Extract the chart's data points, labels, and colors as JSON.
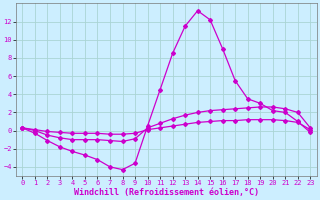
{
  "xlabel": "Windchill (Refroidissement éolien,°C)",
  "background_color": "#cceeff",
  "grid_color": "#aad4d4",
  "line_color": "#cc00cc",
  "xlim": [
    -0.5,
    23.5
  ],
  "ylim": [
    -5,
    14
  ],
  "xticks": [
    0,
    1,
    2,
    3,
    4,
    5,
    6,
    7,
    8,
    9,
    10,
    11,
    12,
    13,
    14,
    15,
    16,
    17,
    18,
    19,
    20,
    21,
    22,
    23
  ],
  "yticks": [
    -4,
    -2,
    0,
    2,
    4,
    6,
    8,
    10,
    12
  ],
  "line1_x": [
    0,
    1,
    2,
    3,
    4,
    5,
    6,
    7,
    8,
    9,
    10,
    11,
    12,
    13,
    14,
    15,
    16,
    17,
    18,
    19,
    20,
    21,
    22,
    23
  ],
  "line1_y": [
    0.3,
    -0.3,
    -1.1,
    -1.8,
    -2.3,
    -2.7,
    -3.2,
    -4.0,
    -4.3,
    -3.6,
    0.5,
    4.5,
    8.5,
    11.5,
    13.2,
    12.2,
    9.0,
    5.5,
    3.5,
    3.0,
    2.2,
    2.0,
    1.0,
    -0.2
  ],
  "line2_x": [
    0,
    1,
    2,
    3,
    4,
    5,
    6,
    7,
    8,
    9,
    10,
    11,
    12,
    13,
    14,
    15,
    16,
    17,
    18,
    19,
    20,
    21,
    22,
    23
  ],
  "line2_y": [
    0.3,
    0.0,
    -0.5,
    -0.8,
    -1.0,
    -1.0,
    -1.0,
    -1.1,
    -1.2,
    -0.9,
    0.3,
    0.8,
    1.3,
    1.7,
    2.0,
    2.2,
    2.3,
    2.4,
    2.5,
    2.6,
    2.6,
    2.4,
    2.0,
    0.3
  ],
  "line3_x": [
    0,
    1,
    2,
    3,
    4,
    5,
    6,
    7,
    8,
    9,
    10,
    11,
    12,
    13,
    14,
    15,
    16,
    17,
    18,
    19,
    20,
    21,
    22,
    23
  ],
  "line3_y": [
    0.3,
    0.1,
    -0.1,
    -0.2,
    -0.3,
    -0.3,
    -0.3,
    -0.4,
    -0.4,
    -0.3,
    0.1,
    0.3,
    0.5,
    0.7,
    0.9,
    1.0,
    1.1,
    1.1,
    1.2,
    1.2,
    1.2,
    1.1,
    0.9,
    0.1
  ],
  "tick_fontsize": 5.0,
  "xlabel_fontsize": 6.0
}
